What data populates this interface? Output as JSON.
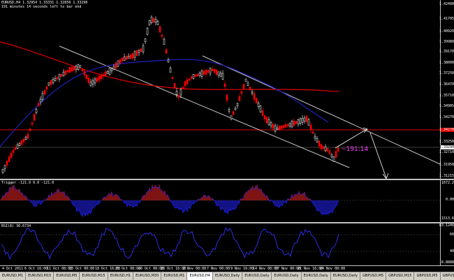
{
  "header": {
    "symbol_line": "EURUSD,H4  1.32954 1.33331 1.32850 1.33290",
    "timer_line": "191 minutes 14 seconds left to bar end"
  },
  "chart_label": "~191:14",
  "price_axis": {
    "labels": [
      "1.42490",
      "1.41705",
      "1.40920",
      "1.39980",
      "1.39170",
      "1.38000",
      "1.37250",
      "1.36470",
      "1.35710",
      "1.34905",
      "1.34270",
      "1.33250",
      "1.32710",
      "1.31950",
      "1.31215"
    ]
  },
  "price_markers": {
    "red_level": "1.34270",
    "current_price": "1.33290"
  },
  "trigger": {
    "title": "Trigger -121.0 0.0 -121.0",
    "labels": [
      "1672.2",
      "0.00",
      "-1513.6"
    ]
  },
  "rsi": {
    "title": "RSI(8) 30.6734",
    "labels": [
      "83.1246",
      "60",
      "40",
      "-8.8888"
    ]
  },
  "time_axis": {
    "labels": [
      "4 Oct 2011",
      "6 Oct 16:00",
      "11 Oct 08:00",
      "13 Oct 00:00",
      "18 Oct 16:00",
      "21 Oct 08:00",
      "26 Oct 00:00",
      "28 Oct 16:00",
      "2 Nov 08:00",
      "7 Nov 00:00",
      "9 Nov 16:00",
      "14 Nov 08:00",
      "17 Nov 00:00",
      "21 Nov 16:00",
      "24 Nov 08:00"
    ]
  },
  "tabs": [
    "EURUSD,M1",
    "EURUSD,M15",
    "EURUSD,M5",
    "EURUSD,M15",
    "EURUSD,H1",
    "EURUSD,M30",
    "EURUSD,M1",
    "EURUSD,H4",
    "EURUSD,Daily",
    "EURUSD,Daily",
    "EURUSD,Daily",
    "EURUSD,Daily",
    "EURUSD,Daily",
    "GBPUSD,M5",
    "GBPUSD,M15",
    "GBPUSD,M5",
    "GBPUSD,r"
  ],
  "active_tab_index": 7,
  "colors": {
    "bull": "#ffffff",
    "bear": "#ff0000",
    "ma_red": "#e00000",
    "ma_blue": "#2020c0",
    "channel": "#c8c8c8",
    "arrow": "#ffffff",
    "label": "#ff40ff"
  }
}
